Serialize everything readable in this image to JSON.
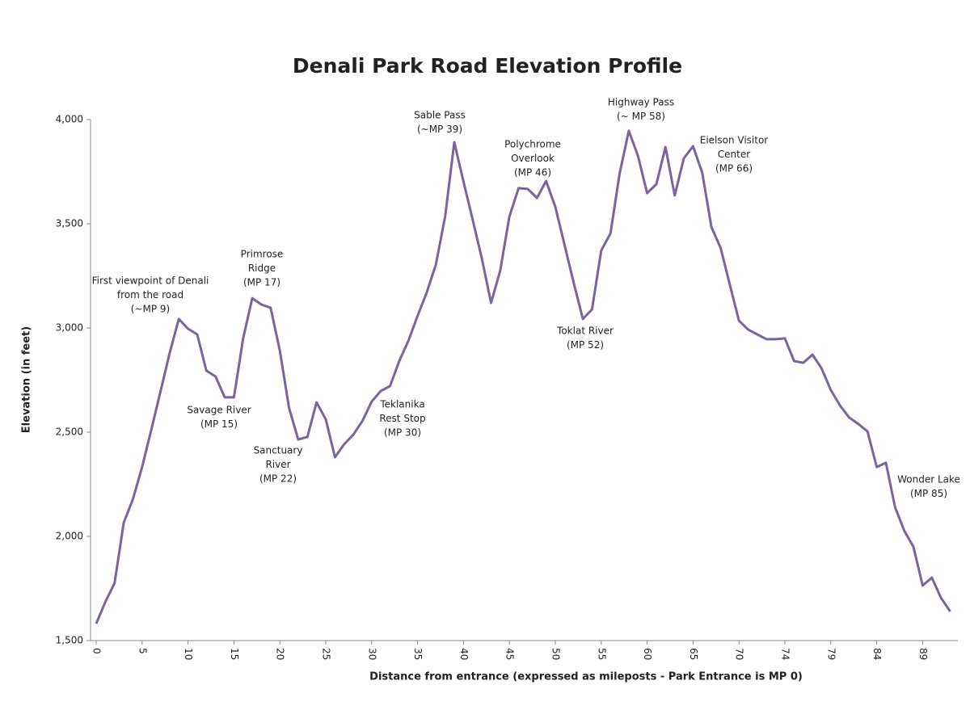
{
  "chart_data": {
    "type": "line",
    "title": "Denali Park Road Elevation Profile",
    "x_label": "Distance from entrance (expressed as mileposts - Park Entrance is MP 0)",
    "y_label": "Elevation (in feet)",
    "color": "#7b63a0",
    "categories": [
      0,
      null,
      null,
      null,
      null,
      5,
      null,
      null,
      null,
      null,
      10,
      null,
      null,
      null,
      null,
      15,
      null,
      null,
      null,
      null,
      20,
      null,
      null,
      null,
      null,
      25,
      null,
      null,
      null,
      null,
      30,
      null,
      null,
      null,
      null,
      35,
      null,
      null,
      null,
      null,
      40,
      null,
      null,
      null,
      null,
      45,
      null,
      null,
      null,
      null,
      50,
      null,
      null,
      null,
      null,
      55,
      null,
      null,
      null,
      null,
      60,
      null,
      null,
      null,
      null,
      65,
      null,
      null,
      null,
      null,
      70,
      null,
      null,
      null,
      null,
      74,
      null,
      null,
      null,
      null,
      79,
      null,
      null,
      null,
      null,
      84,
      null,
      null,
      null,
      null,
      89,
      null,
      null,
      null
    ],
    "values": [
      1581,
      1686,
      1775,
      2066,
      2178,
      2333,
      2512,
      2694,
      2880,
      3043,
      2996,
      2969,
      2795,
      2767,
      2667,
      2667,
      2950,
      3143,
      3112,
      3097,
      2891,
      2616,
      2465,
      2477,
      2643,
      2562,
      2380,
      2442,
      2488,
      2554,
      2647,
      2698,
      2721,
      2841,
      2938,
      3058,
      3171,
      3306,
      3535,
      3891,
      3702,
      3519,
      3333,
      3120,
      3275,
      3535,
      3671,
      3667,
      3624,
      3705,
      3581,
      3399,
      3217,
      3043,
      3089,
      3372,
      3453,
      3740,
      3946,
      3826,
      3647,
      3690,
      3868,
      3636,
      3814,
      3872,
      3744,
      3484,
      3384,
      3209,
      3035,
      2992,
      2969,
      2946,
      2946,
      2950,
      2841,
      2833,
      2872,
      2806,
      2702,
      2628,
      2570,
      2539,
      2504,
      2333,
      2353,
      2140,
      2027,
      1950,
      1764,
      1802,
      1705,
      1640
    ],
    "ylim": [
      1500,
      4000
    ],
    "yticks": [
      {
        "value": 1500,
        "label": "1,500"
      },
      {
        "value": 2000,
        "label": "2,000"
      },
      {
        "value": 2500,
        "label": "2,500"
      },
      {
        "value": 3000,
        "label": "3,000"
      },
      {
        "value": 3500,
        "label": "3,500"
      },
      {
        "value": 4000,
        "label": "4,000"
      }
    ],
    "annotations": [
      [
        "First viewpoint of Denali",
        "from the road",
        "(~MP 9)"
      ],
      [
        "Primrose",
        "Ridge",
        "(MP 17)"
      ],
      [
        "Savage River",
        "(MP 15)"
      ],
      [
        "Sanctuary",
        "River",
        "(MP 22)"
      ],
      [
        "Teklanika",
        "Rest Stop",
        "(MP 30)"
      ],
      [
        "Sable Pass",
        "(~MP 39)"
      ],
      [
        "Polychrome",
        "Overlook",
        "(MP 46)"
      ],
      [
        "Toklat River",
        "(MP 52)"
      ],
      [
        "Highway Pass",
        "(~ MP 58)"
      ],
      [
        "Eielson Visitor",
        "Center",
        "(MP 66)"
      ],
      [
        "Wonder Lake",
        "(MP 85)"
      ]
    ]
  }
}
